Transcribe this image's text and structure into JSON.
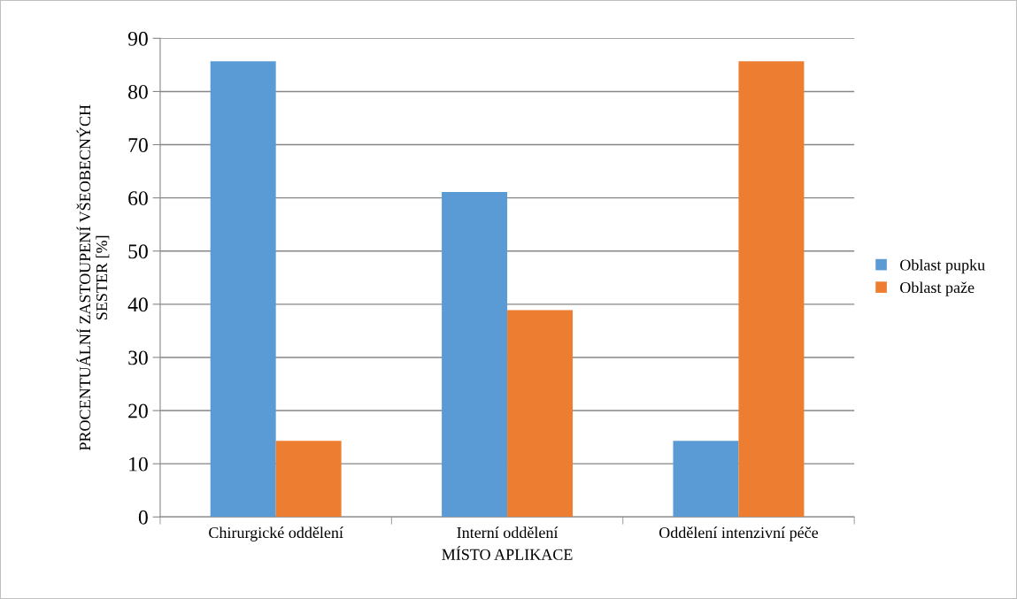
{
  "chart_data": {
    "type": "bar",
    "xlabel": "MÍSTO APLIKACE",
    "ylabel": "PROCENTUÁLNÍ ZASTOUPENÍ VŠEOBECNÝCH\nSESTER [%]",
    "categories": [
      "Chirurgické oddělení",
      "Interní oddělení",
      "Oddělení intenzivní péče"
    ],
    "series": [
      {
        "name": "Oblast pupku",
        "color": "#5b9bd5",
        "values": [
          85.7,
          61.1,
          14.3
        ]
      },
      {
        "name": "Oblast paže",
        "color": "#ed7d31",
        "values": [
          14.3,
          38.9,
          85.7
        ]
      }
    ],
    "ylim": [
      0,
      90
    ],
    "yticks": [
      0,
      10,
      20,
      30,
      40,
      50,
      60,
      70,
      80,
      90
    ],
    "grid": "y",
    "legend": "right"
  }
}
